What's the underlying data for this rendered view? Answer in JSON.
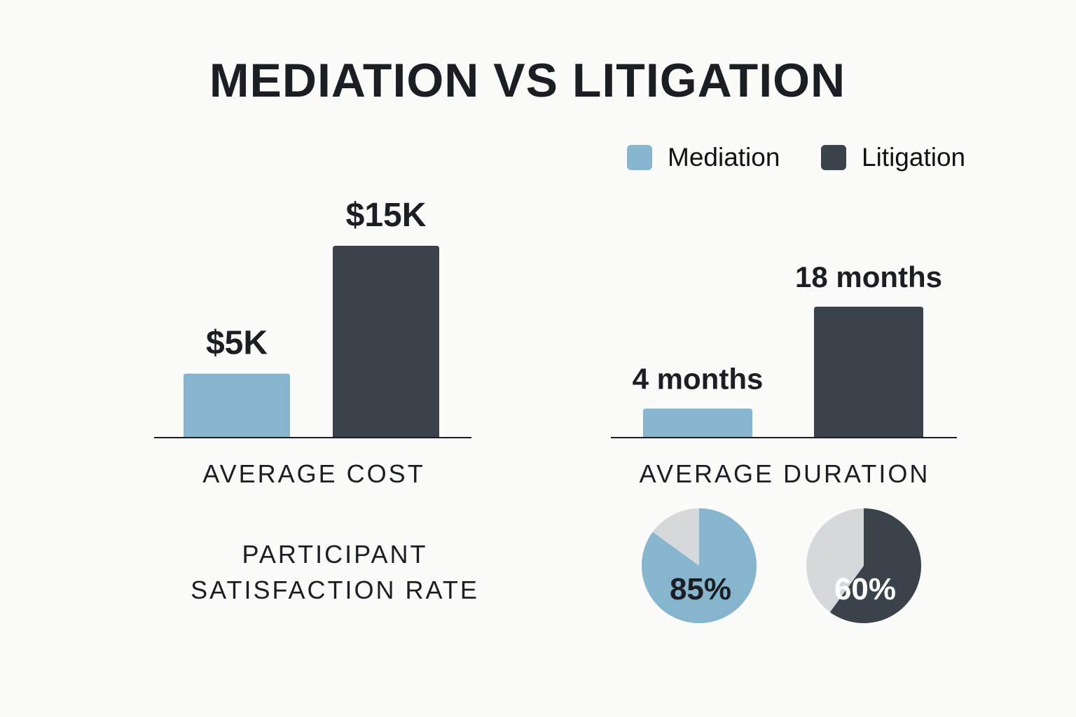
{
  "title": "MEDIATION VS LITIGATION",
  "colors": {
    "mediation": "#86b5cd",
    "litigation": "#3a424a",
    "remainder": "#d5d9dc",
    "background": "#fbfbf9"
  },
  "legend": [
    {
      "label": "Mediation",
      "color": "#86b5cd"
    },
    {
      "label": "Litigation",
      "color": "#3a424a"
    }
  ],
  "chart_data": [
    {
      "type": "bar",
      "title": "AVERAGE COST",
      "categories": [
        "Mediation",
        "Litigation"
      ],
      "values": [
        5000,
        15000
      ],
      "data_labels": [
        "$5K",
        "$15K"
      ],
      "ylim": [
        0,
        15000
      ],
      "grid": false,
      "legend": "top-right"
    },
    {
      "type": "bar",
      "title": "AVERAGE DURATION",
      "categories": [
        "Mediation",
        "Litigation"
      ],
      "values": [
        4,
        18
      ],
      "unit": "months",
      "data_labels": [
        "4 months",
        "18 months"
      ],
      "ylim": [
        0,
        18
      ],
      "grid": false
    },
    {
      "type": "pie",
      "title_lines": [
        "PARTICIPANT",
        "SATISFACTION RATE"
      ],
      "series": [
        {
          "name": "Mediation",
          "value": 85,
          "label": "85%"
        },
        {
          "name": "Litigation",
          "value": 60,
          "label": "60%"
        }
      ]
    }
  ]
}
